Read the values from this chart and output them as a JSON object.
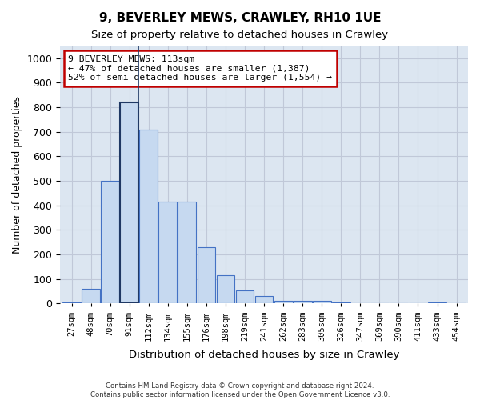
{
  "title1": "9, BEVERLEY MEWS, CRAWLEY, RH10 1UE",
  "title2": "Size of property relative to detached houses in Crawley",
  "xlabel": "Distribution of detached houses by size in Crawley",
  "ylabel": "Number of detached properties",
  "footer1": "Contains HM Land Registry data © Crown copyright and database right 2024.",
  "footer2": "Contains public sector information licensed under the Open Government Licence v3.0.",
  "bins": [
    "27sqm",
    "48sqm",
    "70sqm",
    "91sqm",
    "112sqm",
    "134sqm",
    "155sqm",
    "176sqm",
    "198sqm",
    "219sqm",
    "241sqm",
    "262sqm",
    "283sqm",
    "305sqm",
    "326sqm",
    "347sqm",
    "369sqm",
    "390sqm",
    "411sqm",
    "433sqm",
    "454sqm"
  ],
  "values": [
    5,
    60,
    500,
    820,
    710,
    415,
    415,
    230,
    115,
    55,
    30,
    10,
    10,
    10,
    5,
    0,
    0,
    0,
    0,
    5,
    0
  ],
  "bar_color": "#c6d9f0",
  "bar_edge_color": "#4472c4",
  "highlight_bar_index": 3,
  "highlight_bar_edge_color": "#1f3864",
  "ylim": [
    0,
    1050
  ],
  "yticks": [
    0,
    100,
    200,
    300,
    400,
    500,
    600,
    700,
    800,
    900,
    1000
  ],
  "annotation_title": "9 BEVERLEY MEWS: 113sqm",
  "annotation_line1": "← 47% of detached houses are smaller (1,387)",
  "annotation_line2": "52% of semi-detached houses are larger (1,554) →",
  "annotation_box_color": "#ffffff",
  "annotation_box_edge_color": "#c00000",
  "vline_x": 3.48,
  "grid_color": "#c0c8d8",
  "background_color": "#dce6f1"
}
